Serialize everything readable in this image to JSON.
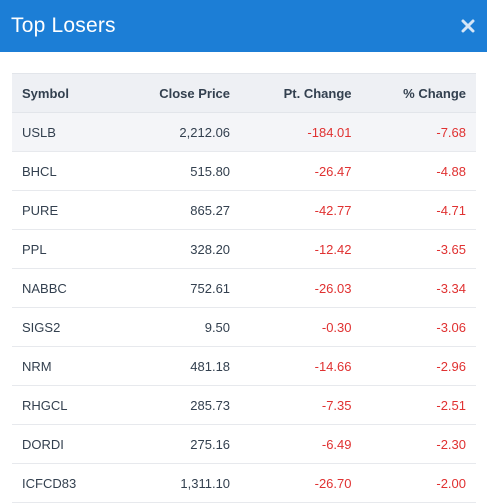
{
  "title": "Top Losers",
  "close_icon": "close-icon",
  "columns": [
    "Symbol",
    "Close Price",
    "Pt. Change",
    "% Change"
  ],
  "negative_color": "#e03131",
  "header_color": "#1c7ed6",
  "rows": [
    {
      "symbol": "USLB",
      "close": "2,212.06",
      "pt": "-184.01",
      "pct": "-7.68"
    },
    {
      "symbol": "BHCL",
      "close": "515.80",
      "pt": "-26.47",
      "pct": "-4.88"
    },
    {
      "symbol": "PURE",
      "close": "865.27",
      "pt": "-42.77",
      "pct": "-4.71"
    },
    {
      "symbol": "PPL",
      "close": "328.20",
      "pt": "-12.42",
      "pct": "-3.65"
    },
    {
      "symbol": "NABBC",
      "close": "752.61",
      "pt": "-26.03",
      "pct": "-3.34"
    },
    {
      "symbol": "SIGS2",
      "close": "9.50",
      "pt": "-0.30",
      "pct": "-3.06"
    },
    {
      "symbol": "NRM",
      "close": "481.18",
      "pt": "-14.66",
      "pct": "-2.96"
    },
    {
      "symbol": "RHGCL",
      "close": "285.73",
      "pt": "-7.35",
      "pct": "-2.51"
    },
    {
      "symbol": "DORDI",
      "close": "275.16",
      "pt": "-6.49",
      "pct": "-2.30"
    },
    {
      "symbol": "ICFCD83",
      "close": "1,311.10",
      "pt": "-26.70",
      "pct": "-2.00"
    }
  ]
}
